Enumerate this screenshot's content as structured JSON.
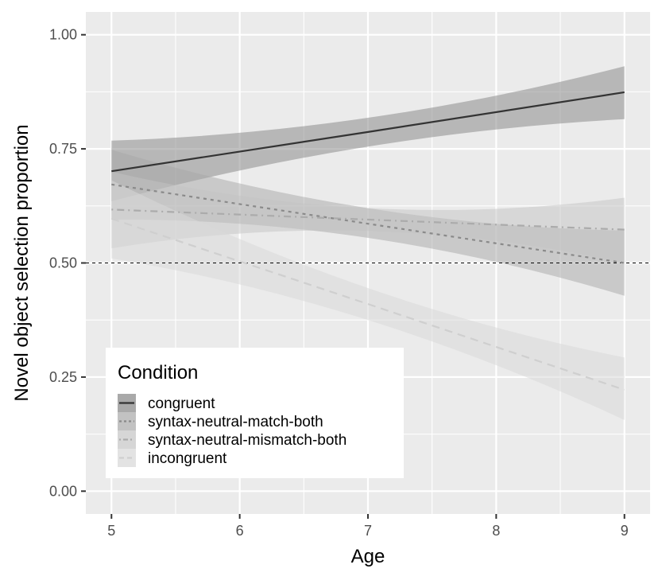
{
  "chart_data": {
    "type": "line",
    "xlabel": "Age",
    "ylabel": "Novel object selection proportion",
    "xlim": [
      4.8,
      9.2
    ],
    "ylim": [
      -0.05,
      1.05
    ],
    "x_ticks": [
      5,
      6,
      7,
      8,
      9
    ],
    "x_tick_labels": [
      "5",
      "6",
      "7",
      "8",
      "9"
    ],
    "y_ticks": [
      0,
      0.25,
      0.5,
      0.75,
      1.0
    ],
    "y_tick_labels": [
      "0.00",
      "0.25",
      "0.50",
      "0.75",
      "1.00"
    ],
    "grid": true,
    "reference_line": {
      "y": 0.5,
      "style": "dashed",
      "color": "#000000"
    },
    "legend": {
      "title": "Condition",
      "position": "bottom-left"
    },
    "series": [
      {
        "name": "congruent",
        "x": [
          5,
          7,
          9
        ],
        "y": [
          0.701,
          0.787,
          0.874
        ],
        "lower": [
          0.635,
          0.755,
          0.815
        ],
        "upper": [
          0.768,
          0.818,
          0.931
        ],
        "line_color": "#333333",
        "band_color": "#8c8c8c",
        "band_opacity": 0.55,
        "dash": "solid"
      },
      {
        "name": "syntax-neutral-match-both",
        "x": [
          5,
          7,
          9
        ],
        "y": [
          0.672,
          0.586,
          0.5
        ],
        "lower": [
          0.595,
          0.555,
          0.428
        ],
        "upper": [
          0.748,
          0.62,
          0.571
        ],
        "line_color": "#8a8a8a",
        "band_color": "#a8a8a8",
        "band_opacity": 0.5,
        "dash": "dotted"
      },
      {
        "name": "syntax-neutral-mismatch-both",
        "x": [
          5,
          7,
          9
        ],
        "y": [
          0.617,
          0.595,
          0.573
        ],
        "lower": [
          0.532,
          0.57,
          0.5
        ],
        "upper": [
          0.7,
          0.62,
          0.643
        ],
        "line_color": "#ababab",
        "band_color": "#c4c4c4",
        "band_opacity": 0.5,
        "dash": "dashdot"
      },
      {
        "name": "incongruent",
        "x": [
          5,
          7,
          9
        ],
        "y": [
          0.597,
          0.41,
          0.222
        ],
        "lower": [
          0.51,
          0.375,
          0.156
        ],
        "upper": [
          0.681,
          0.445,
          0.293
        ],
        "line_color": "#cfcfcf",
        "band_color": "#d9d9d9",
        "band_opacity": 0.55,
        "dash": "dashed"
      }
    ],
    "colors": {
      "panel_background": "#ebebeb",
      "grid": "#ffffff",
      "axis_text": "#4d4d4d",
      "title_text": "#000000"
    }
  }
}
